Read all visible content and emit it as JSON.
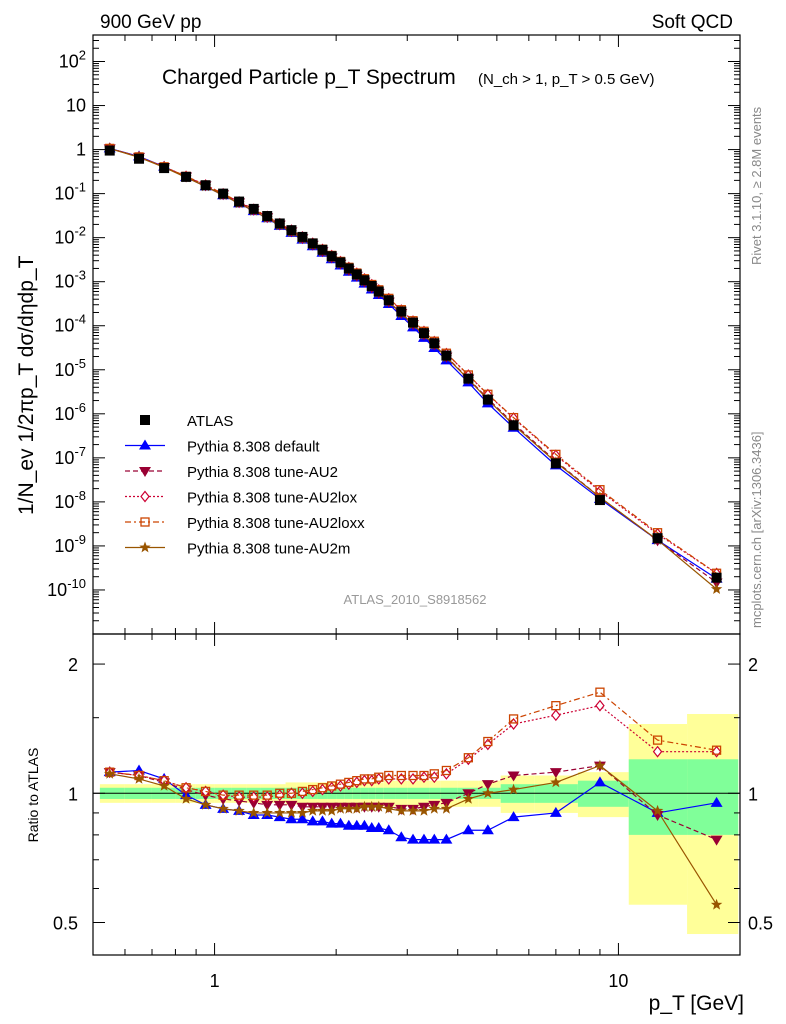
{
  "header": {
    "left": "900 GeV pp",
    "right": "Soft QCD"
  },
  "side": {
    "upper": "Rivet 3.1.10, ≥ 2.8M events",
    "lower": "mcplots.cern.ch [arXiv:1306.3436]"
  },
  "watermark": "ATLAS_2010_S8918562",
  "chart_data": [
    {
      "type": "scatter",
      "title": "Charged Particle p_T Spectrum",
      "subtitle": "(N_ch > 1, p_T > 0.5 GeV)",
      "xlabel": "p_T  [GeV]",
      "ylabel": "1/N_ev 1/2πp_T dσ/dηdp_T",
      "xscale": "log",
      "yscale": "log",
      "xlim": [
        0.5,
        20
      ],
      "ylim": [
        1e-11,
        400
      ],
      "legend_position": "bottom-left",
      "x": [
        0.55,
        0.65,
        0.75,
        0.85,
        0.95,
        1.05,
        1.15,
        1.25,
        1.35,
        1.45,
        1.55,
        1.65,
        1.75,
        1.85,
        1.95,
        2.05,
        2.15,
        2.25,
        2.35,
        2.45,
        2.55,
        2.7,
        2.9,
        3.1,
        3.3,
        3.5,
        3.75,
        4.25,
        4.75,
        5.5,
        7.0,
        9.0,
        12.5,
        17.5
      ],
      "series": [
        {
          "name": "ATLAS",
          "color": "#000000",
          "marker": "square",
          "values": [
            0.95,
            0.62,
            0.38,
            0.24,
            0.155,
            0.1,
            0.066,
            0.045,
            0.031,
            0.021,
            0.0148,
            0.0104,
            0.0074,
            0.0053,
            0.0038,
            0.00275,
            0.002,
            0.00147,
            0.00108,
            0.0008,
            0.0006,
            0.00038,
            0.00021,
            0.000118,
            6.8e-05,
            4e-05,
            2.1e-05,
            6.3e-06,
            2.1e-06,
            5.5e-07,
            7.5e-08,
            1.1e-08,
            1.5e-09,
            1.9e-10
          ]
        },
        {
          "name": "Pythia 8.308 default",
          "color": "#0000ff",
          "marker": "triangle-up",
          "line": "solid"
        },
        {
          "name": "Pythia 8.308 tune-AU2",
          "color": "#990033",
          "marker": "triangle-down",
          "line": "dashed"
        },
        {
          "name": "Pythia 8.308 tune-AU2lox",
          "color": "#cc0033",
          "marker": "diamond",
          "line": "dotted"
        },
        {
          "name": "Pythia 8.308 tune-AU2loxx",
          "color": "#cc4400",
          "marker": "open-square",
          "line": "dashdot"
        },
        {
          "name": "Pythia 8.308 tune-AU2m",
          "color": "#995500",
          "marker": "star",
          "line": "solid"
        }
      ]
    },
    {
      "type": "line",
      "ylabel": "Ratio to ATLAS",
      "xscale": "log",
      "xlim": [
        0.5,
        20
      ],
      "ylim": [
        0.42,
        2.35
      ],
      "y_ticks": [
        "0.5",
        "1",
        "2"
      ],
      "x_ticks": [
        "1",
        "10"
      ],
      "x": [
        0.55,
        0.65,
        0.75,
        0.85,
        0.95,
        1.05,
        1.15,
        1.25,
        1.35,
        1.45,
        1.55,
        1.65,
        1.75,
        1.85,
        1.95,
        2.05,
        2.15,
        2.25,
        2.35,
        2.45,
        2.55,
        2.7,
        2.9,
        3.1,
        3.3,
        3.5,
        3.75,
        4.25,
        4.75,
        5.5,
        7.0,
        9.0,
        12.5,
        17.5
      ],
      "band_green_halfwidth": [
        0.03,
        0.03,
        0.03,
        0.03,
        0.03,
        0.03,
        0.03,
        0.03,
        0.03,
        0.03,
        0.03,
        0.03,
        0.03,
        0.03,
        0.03,
        0.03,
        0.03,
        0.03,
        0.03,
        0.03,
        0.03,
        0.03,
        0.03,
        0.03,
        0.03,
        0.03,
        0.03,
        0.03,
        0.03,
        0.05,
        0.05,
        0.07,
        0.2,
        0.2
      ],
      "band_yellow_halfwidth": [
        0.05,
        0.05,
        0.05,
        0.05,
        0.05,
        0.05,
        0.05,
        0.05,
        0.05,
        0.05,
        0.06,
        0.06,
        0.06,
        0.06,
        0.06,
        0.06,
        0.06,
        0.06,
        0.06,
        0.06,
        0.06,
        0.07,
        0.07,
        0.07,
        0.07,
        0.07,
        0.07,
        0.07,
        0.07,
        0.1,
        0.1,
        0.12,
        0.45,
        0.53
      ],
      "series": [
        {
          "name": "Pythia 8.308 default",
          "values": [
            1.12,
            1.13,
            1.08,
            0.99,
            0.94,
            0.92,
            0.91,
            0.89,
            0.89,
            0.88,
            0.87,
            0.87,
            0.86,
            0.86,
            0.85,
            0.85,
            0.84,
            0.84,
            0.84,
            0.83,
            0.83,
            0.82,
            0.79,
            0.78,
            0.78,
            0.78,
            0.78,
            0.82,
            0.82,
            0.88,
            0.9,
            1.06,
            0.9,
            0.95
          ]
        },
        {
          "name": "Pythia 8.308 tune-AU2",
          "values": [
            1.12,
            1.1,
            1.06,
            1.02,
            0.99,
            0.97,
            0.96,
            0.95,
            0.94,
            0.94,
            0.94,
            0.93,
            0.93,
            0.93,
            0.93,
            0.93,
            0.93,
            0.93,
            0.93,
            0.93,
            0.93,
            0.93,
            0.92,
            0.92,
            0.93,
            0.94,
            0.95,
            1.0,
            1.05,
            1.1,
            1.12,
            1.16,
            0.89,
            0.78
          ]
        },
        {
          "name": "Pythia 8.308 tune-AU2lox",
          "values": [
            1.12,
            1.1,
            1.07,
            1.03,
            1.01,
            0.99,
            0.98,
            0.98,
            0.98,
            0.99,
            1.0,
            1.0,
            1.01,
            1.02,
            1.03,
            1.04,
            1.05,
            1.06,
            1.07,
            1.07,
            1.08,
            1.08,
            1.08,
            1.08,
            1.09,
            1.09,
            1.11,
            1.2,
            1.3,
            1.45,
            1.52,
            1.6,
            1.25,
            1.25
          ]
        },
        {
          "name": "Pythia 8.308 tune-AU2loxx",
          "values": [
            1.12,
            1.1,
            1.07,
            1.03,
            1.01,
            0.99,
            0.99,
            0.99,
            0.99,
            1.0,
            1.0,
            1.01,
            1.02,
            1.03,
            1.04,
            1.05,
            1.06,
            1.07,
            1.08,
            1.08,
            1.09,
            1.1,
            1.1,
            1.1,
            1.1,
            1.11,
            1.13,
            1.21,
            1.32,
            1.49,
            1.6,
            1.72,
            1.33,
            1.26
          ]
        },
        {
          "name": "Pythia 8.308 tune-AU2m",
          "values": [
            1.11,
            1.08,
            1.04,
            0.97,
            0.94,
            0.92,
            0.91,
            0.9,
            0.9,
            0.9,
            0.9,
            0.9,
            0.91,
            0.91,
            0.91,
            0.92,
            0.92,
            0.92,
            0.93,
            0.93,
            0.93,
            0.92,
            0.91,
            0.91,
            0.91,
            0.92,
            0.92,
            0.97,
            1.0,
            1.02,
            1.06,
            1.16,
            0.91,
            0.55
          ]
        }
      ]
    }
  ]
}
